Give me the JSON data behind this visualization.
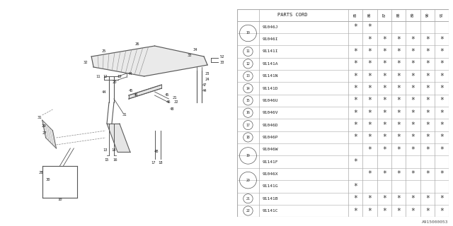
{
  "bg_color": "#ffffff",
  "line_color": "#aaaaaa",
  "text_color": "#222222",
  "footer": "A915000053",
  "col_headers": [
    "PARTS CORD",
    "85",
    "86",
    "87",
    "88",
    "89",
    "90",
    "91"
  ],
  "groups": [
    {
      "ref": "10",
      "parts": [
        {
          "code": "91046J",
          "stars": [
            1,
            1,
            0,
            0,
            0,
            0,
            0
          ]
        },
        {
          "code": "91046I",
          "stars": [
            0,
            1,
            1,
            1,
            1,
            1,
            1
          ]
        }
      ]
    },
    {
      "ref": "11",
      "parts": [
        {
          "code": "91141I",
          "stars": [
            1,
            1,
            1,
            1,
            1,
            1,
            1
          ]
        }
      ]
    },
    {
      "ref": "12",
      "parts": [
        {
          "code": "91141A",
          "stars": [
            1,
            1,
            1,
            1,
            1,
            1,
            1
          ]
        }
      ]
    },
    {
      "ref": "13",
      "parts": [
        {
          "code": "91141N",
          "stars": [
            1,
            1,
            1,
            1,
            1,
            1,
            1
          ]
        }
      ]
    },
    {
      "ref": "14",
      "parts": [
        {
          "code": "91141D",
          "stars": [
            1,
            1,
            1,
            1,
            1,
            1,
            1
          ]
        }
      ]
    },
    {
      "ref": "15",
      "parts": [
        {
          "code": "91046U",
          "stars": [
            1,
            1,
            1,
            1,
            1,
            1,
            1
          ]
        }
      ]
    },
    {
      "ref": "16",
      "parts": [
        {
          "code": "91046V",
          "stars": [
            1,
            1,
            1,
            1,
            1,
            1,
            1
          ]
        }
      ]
    },
    {
      "ref": "17",
      "parts": [
        {
          "code": "91046D",
          "stars": [
            1,
            1,
            1,
            1,
            1,
            1,
            1
          ]
        }
      ]
    },
    {
      "ref": "18",
      "parts": [
        {
          "code": "91046P",
          "stars": [
            1,
            1,
            1,
            1,
            1,
            1,
            1
          ]
        }
      ]
    },
    {
      "ref": "19",
      "parts": [
        {
          "code": "91046W",
          "stars": [
            0,
            1,
            1,
            1,
            1,
            1,
            1
          ]
        },
        {
          "code": "91141F",
          "stars": [
            1,
            0,
            0,
            0,
            0,
            0,
            0
          ]
        }
      ]
    },
    {
      "ref": "20",
      "parts": [
        {
          "code": "91046X",
          "stars": [
            0,
            1,
            1,
            1,
            1,
            1,
            1
          ]
        },
        {
          "code": "91141G",
          "stars": [
            1,
            0,
            0,
            0,
            0,
            0,
            0
          ]
        }
      ]
    },
    {
      "ref": "21",
      "parts": [
        {
          "code": "91141B",
          "stars": [
            1,
            1,
            1,
            1,
            1,
            1,
            1
          ]
        }
      ]
    },
    {
      "ref": "22",
      "parts": [
        {
          "code": "91141C",
          "stars": [
            1,
            1,
            1,
            1,
            1,
            1,
            1
          ]
        }
      ]
    }
  ]
}
